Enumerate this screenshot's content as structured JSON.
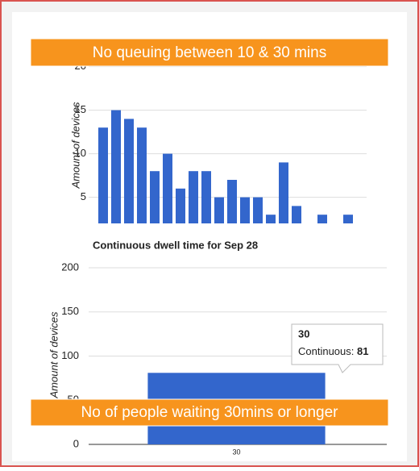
{
  "chart_data": [
    {
      "type": "bar",
      "annotation": "No queuing between 10 & 30 mins",
      "y_label": "Amount of devices",
      "categories": [
        null,
        null,
        null,
        null,
        null,
        null,
        null,
        null,
        null,
        null,
        null,
        null,
        null,
        null,
        null,
        null,
        null,
        null,
        null,
        null
      ],
      "values": [
        13,
        15,
        14,
        13,
        8,
        10,
        6,
        8,
        8,
        5,
        7,
        5,
        5,
        3,
        9,
        4,
        null,
        3,
        null,
        3
      ],
      "color": "#3366cc",
      "ylim": [
        2,
        20
      ],
      "yticks": [
        5,
        10,
        15,
        20
      ],
      "grid": true
    },
    {
      "type": "bar",
      "title": "Continuous dwell time for Sep 28",
      "annotation": "No of people waiting 30mins or longer",
      "y_label": "Amount of devices",
      "categories": [
        "30"
      ],
      "series": [
        {
          "name": "Continuous",
          "color": "#3366cc",
          "values": [
            81
          ]
        }
      ],
      "tooltip_label": "Continuous:",
      "ylim": [
        0,
        200
      ],
      "yticks": [
        0,
        50,
        100,
        150,
        200
      ],
      "grid": true
    }
  ]
}
